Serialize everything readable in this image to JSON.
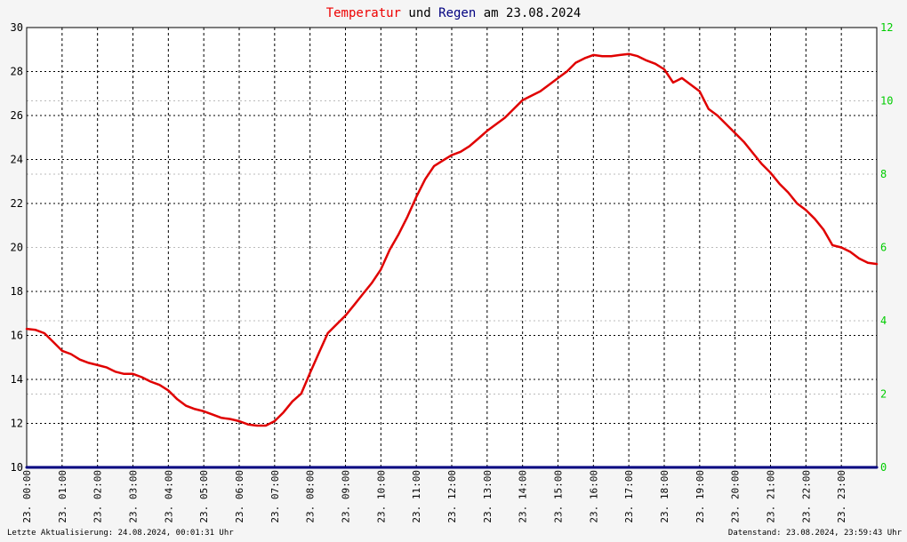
{
  "title": {
    "part1": "Temperatur",
    "part2": " und ",
    "part3": "Regen",
    "part4": " am 23.08.2024",
    "color1": "#ee0000",
    "color2": "#000000",
    "color3": "#000080",
    "color4": "#000000"
  },
  "footer": {
    "left": "Letzte Aktualisierung: 24.08.2024, 00:01:31 Uhr",
    "right": "Datenstand: 23.08.2024, 23:59:43 Uhr"
  },
  "colors": {
    "temperature": "#e00000",
    "rain": "#000080",
    "right_axis": "#00cc00",
    "left_axis": "#000000",
    "grid": "#000000",
    "sub_grid": "#bbbbbb",
    "plot_bg": "#ffffff",
    "page_bg": "#f5f5f5"
  },
  "chart_data": {
    "type": "line",
    "x_tick_labels": [
      "23. 00:00",
      "23. 01:00",
      "23. 02:00",
      "23. 03:00",
      "23. 04:00",
      "23. 05:00",
      "23. 06:00",
      "23. 07:00",
      "23. 08:00",
      "23. 09:00",
      "23. 10:00",
      "23. 11:00",
      "23. 12:00",
      "23. 13:00",
      "23. 14:00",
      "23. 15:00",
      "23. 16:00",
      "23. 17:00",
      "23. 18:00",
      "23. 19:00",
      "23. 20:00",
      "23. 21:00",
      "23. 22:00",
      "23. 23:00"
    ],
    "x_unit": "hours",
    "xlim": [
      0,
      24
    ],
    "left_axis": {
      "ylim": [
        10,
        30
      ],
      "ticks": [
        10,
        12,
        14,
        16,
        18,
        20,
        22,
        24,
        26,
        28,
        30
      ]
    },
    "right_axis": {
      "ylim": [
        0,
        12
      ],
      "tick_labels": [
        "0",
        "2",
        "4",
        "6",
        "8",
        "10",
        "12"
      ]
    },
    "grid": true,
    "series": [
      {
        "name": "Temperatur",
        "axis": "left",
        "x": [
          0,
          0.25,
          0.5,
          0.75,
          1,
          1.25,
          1.5,
          1.75,
          2,
          2.25,
          2.5,
          2.75,
          3,
          3.25,
          3.5,
          3.75,
          4,
          4.25,
          4.5,
          4.75,
          5,
          5.25,
          5.5,
          5.75,
          6,
          6.25,
          6.5,
          6.75,
          7,
          7.25,
          7.5,
          7.75,
          8,
          8.25,
          8.5,
          8.75,
          9,
          9.25,
          9.5,
          9.75,
          10,
          10.25,
          10.5,
          10.75,
          11,
          11.25,
          11.5,
          11.75,
          12,
          12.25,
          12.5,
          12.75,
          13,
          13.25,
          13.5,
          13.75,
          14,
          14.25,
          14.5,
          14.75,
          15,
          15.25,
          15.5,
          15.75,
          16,
          16.25,
          16.5,
          16.75,
          17,
          17.25,
          17.5,
          17.75,
          18,
          18.25,
          18.5,
          18.75,
          19,
          19.25,
          19.5,
          19.75,
          20,
          20.25,
          20.5,
          20.75,
          21,
          21.25,
          21.5,
          21.75,
          22,
          22.25,
          22.5,
          22.75,
          23,
          23.25,
          23.5,
          23.75,
          24
        ],
        "values": [
          16.3,
          16.25,
          16.1,
          15.7,
          15.3,
          15.15,
          14.9,
          14.75,
          14.65,
          14.55,
          14.35,
          14.25,
          14.25,
          14.1,
          13.9,
          13.75,
          13.5,
          13.1,
          12.8,
          12.65,
          12.55,
          12.4,
          12.25,
          12.2,
          12.1,
          11.95,
          11.9,
          11.9,
          12.1,
          12.5,
          13.0,
          13.35,
          14.3,
          15.2,
          16.1,
          16.5,
          16.9,
          17.4,
          17.9,
          18.4,
          19.0,
          19.9,
          20.6,
          21.4,
          22.3,
          23.1,
          23.7,
          23.95,
          24.2,
          24.35,
          24.6,
          24.95,
          25.3,
          25.6,
          25.9,
          26.3,
          26.7,
          26.9,
          27.1,
          27.4,
          27.7,
          28.0,
          28.4,
          28.6,
          28.75,
          28.7,
          28.7,
          28.75,
          28.8,
          28.7,
          28.5,
          28.35,
          28.1,
          27.5,
          27.7,
          27.4,
          27.1,
          26.3,
          26.0,
          25.6,
          25.2,
          24.8,
          24.3,
          23.8,
          23.4,
          22.9,
          22.5,
          22.0,
          21.7,
          21.3,
          20.8,
          20.1,
          20.0,
          19.8,
          19.5,
          19.3,
          19.25
        ],
        "color": "#e00000"
      },
      {
        "name": "Regen",
        "axis": "right",
        "x": [
          0,
          24
        ],
        "values": [
          0,
          0
        ],
        "color": "#000080"
      }
    ]
  }
}
